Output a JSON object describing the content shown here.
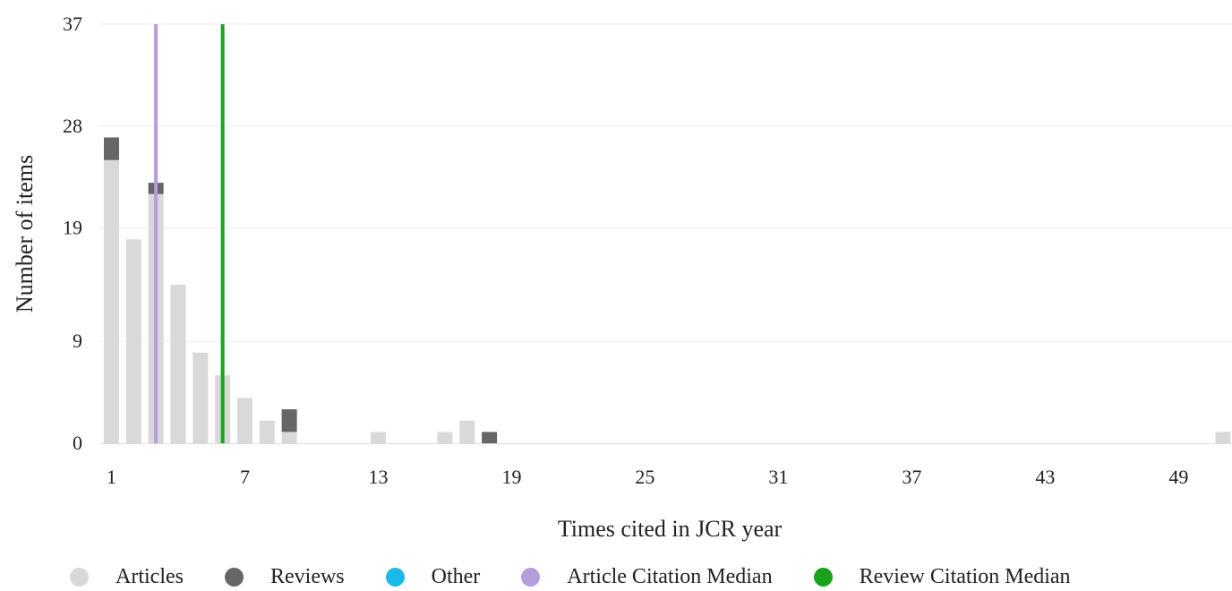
{
  "chart_data": {
    "type": "bar",
    "stacked": true,
    "xlabel": "Times cited in JCR year",
    "ylabel": "Number of items",
    "x_categories": [
      1,
      2,
      3,
      4,
      5,
      6,
      7,
      8,
      9,
      10,
      11,
      12,
      13,
      14,
      15,
      16,
      17,
      18,
      19,
      20,
      21,
      22,
      23,
      24,
      25,
      26,
      27,
      28,
      29,
      30,
      31,
      32,
      33,
      34,
      35,
      36,
      37,
      38,
      39,
      40,
      41,
      42,
      43,
      44,
      45,
      46,
      47,
      48,
      49,
      50,
      51
    ],
    "x_tick_labels": [
      "1",
      "7",
      "13",
      "19",
      "25",
      "31",
      "37",
      "43",
      "49"
    ],
    "y_ticks": [
      0,
      9,
      19,
      28,
      37
    ],
    "ylim": [
      0,
      37
    ],
    "series": [
      {
        "name": "Articles",
        "color": "#d9d9d9",
        "points": [
          {
            "x": 1,
            "y": 25
          },
          {
            "x": 2,
            "y": 18
          },
          {
            "x": 3,
            "y": 22
          },
          {
            "x": 4,
            "y": 14
          },
          {
            "x": 5,
            "y": 8
          },
          {
            "x": 6,
            "y": 6
          },
          {
            "x": 7,
            "y": 4
          },
          {
            "x": 8,
            "y": 2
          },
          {
            "x": 9,
            "y": 1
          },
          {
            "x": 13,
            "y": 1
          },
          {
            "x": 16,
            "y": 1
          },
          {
            "x": 17,
            "y": 2
          },
          {
            "x": 51,
            "y": 1
          }
        ]
      },
      {
        "name": "Reviews",
        "color": "#666666",
        "points": [
          {
            "x": 1,
            "y": 2
          },
          {
            "x": 3,
            "y": 1
          },
          {
            "x": 9,
            "y": 2
          },
          {
            "x": 18,
            "y": 1
          }
        ]
      },
      {
        "name": "Other",
        "color": "#1ab9ea",
        "points": []
      }
    ],
    "reference_lines": [
      {
        "name": "Article Citation Median",
        "x": 3,
        "color": "#b39ddb"
      },
      {
        "name": "Review Citation Median",
        "x": 6,
        "color": "#1aa31a"
      }
    ],
    "grid": true,
    "legend_position": "bottom"
  },
  "legend": [
    {
      "label": "Articles",
      "color": "#d9d9d9"
    },
    {
      "label": "Reviews",
      "color": "#666666"
    },
    {
      "label": "Other",
      "color": "#1ab9ea"
    },
    {
      "label": "Article Citation Median",
      "color": "#b39ddb"
    },
    {
      "label": "Review Citation Median",
      "color": "#1aa31a"
    }
  ]
}
